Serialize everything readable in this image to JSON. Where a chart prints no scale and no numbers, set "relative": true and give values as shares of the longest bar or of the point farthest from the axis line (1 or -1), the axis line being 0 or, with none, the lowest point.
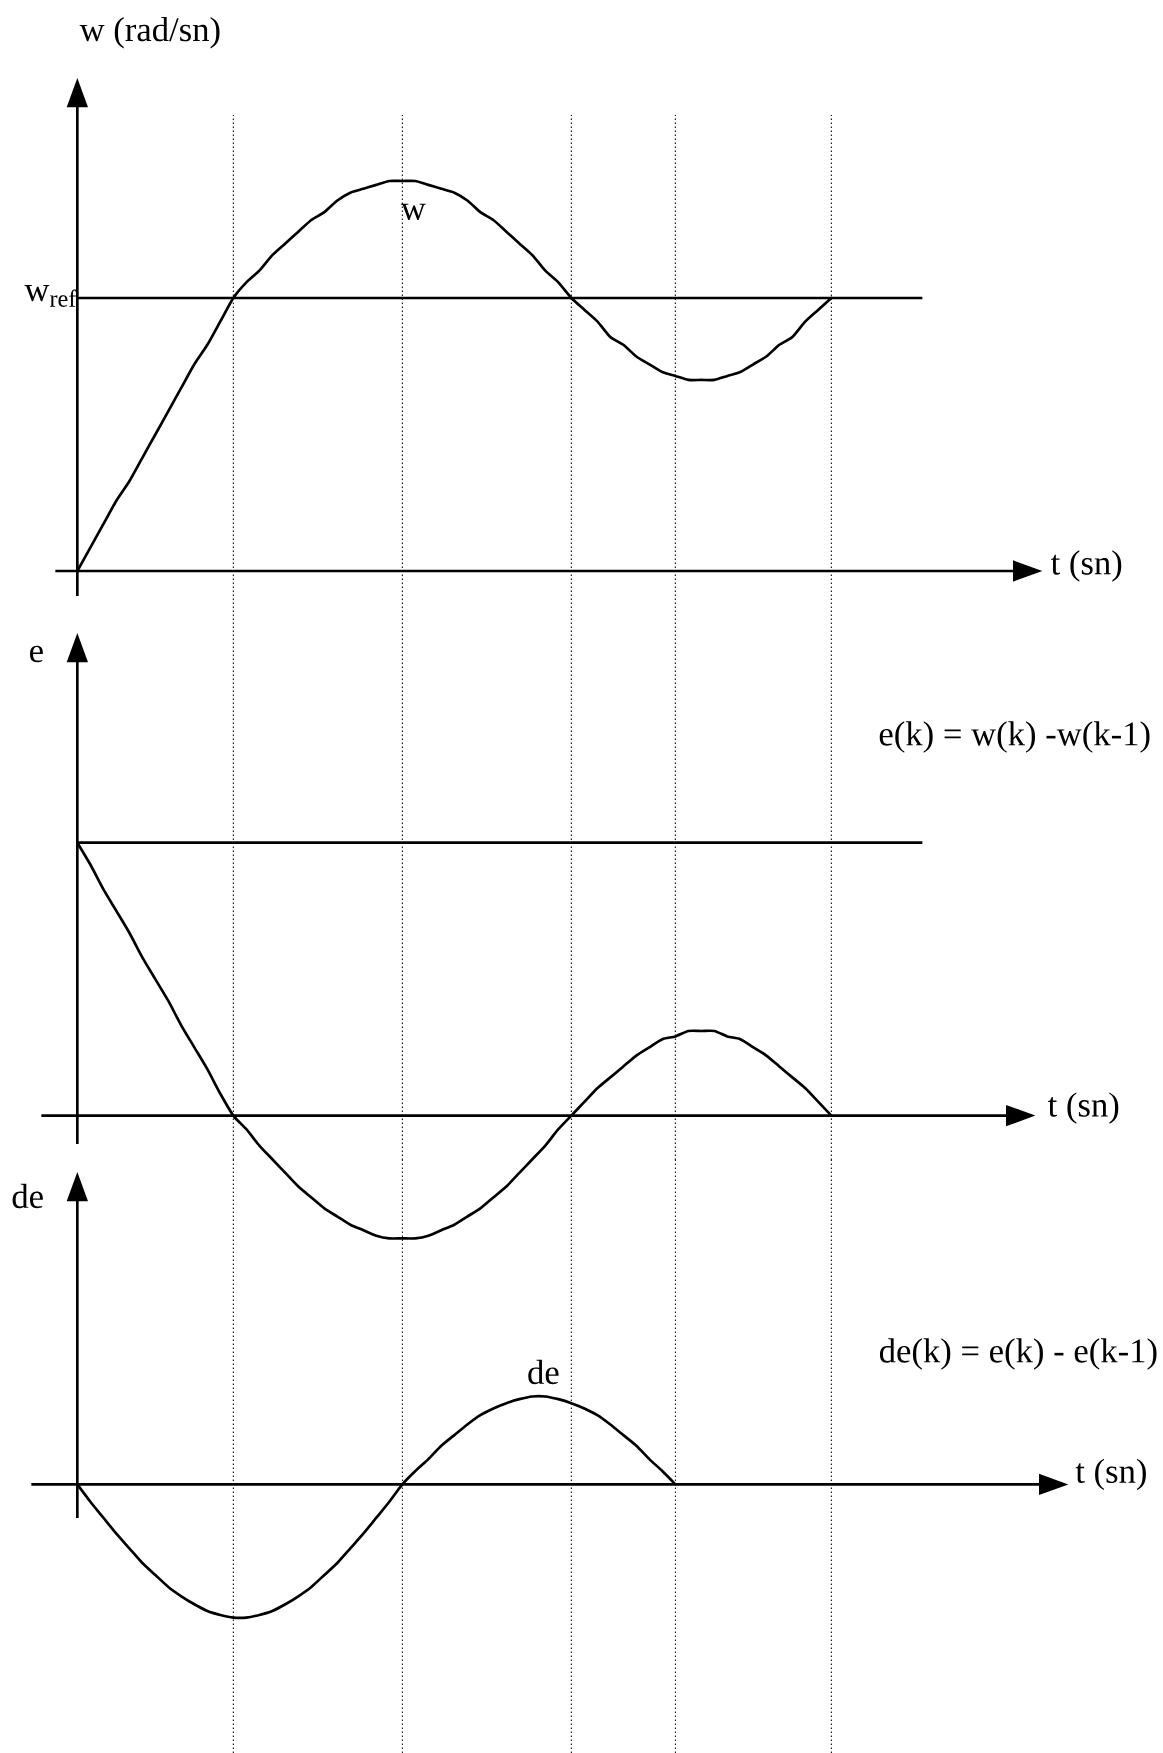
{
  "chart_data": [
    {
      "type": "line",
      "ylabel": "w (rad/sn)",
      "xlabel": "t (sn)",
      "relative": true,
      "grid": "x",
      "categories": [
        null,
        null,
        null,
        null,
        null,
        null,
        null,
        null,
        null,
        null,
        null,
        null,
        null,
        null,
        null,
        null,
        null,
        null,
        null,
        null,
        null,
        null,
        null,
        null,
        null,
        null,
        null,
        null,
        null,
        null,
        null,
        null,
        null,
        null,
        null,
        null,
        null,
        null,
        null,
        null,
        null,
        null,
        null,
        null,
        null,
        null,
        null,
        null,
        null,
        null,
        null,
        null,
        null,
        null,
        null,
        null,
        null,
        null,
        null,
        null,
        null,
        null,
        null,
        null,
        null,
        null
      ],
      "series": [
        {
          "name": "w",
          "color": "#000000",
          "values": [
            0,
            0.06,
            0.12,
            0.18,
            0.23,
            0.29,
            0.35,
            0.41,
            0.47,
            0.53,
            0.58,
            0.64,
            0.7,
            0.74,
            0.77,
            0.81,
            0.84,
            0.87,
            0.9,
            0.92,
            0.95,
            0.97,
            0.98,
            0.99,
            1,
            1,
            1,
            0.99,
            0.98,
            0.97,
            0.95,
            0.92,
            0.9,
            0.87,
            0.84,
            0.81,
            0.77,
            0.74,
            0.7,
            0.67,
            0.64,
            0.6,
            0.58,
            0.55,
            0.53,
            0.51,
            0.5,
            0.49,
            0.49,
            0.49,
            0.5,
            0.51,
            0.53,
            0.55,
            0.58,
            0.6,
            0.64,
            0.67,
            0.7,
            null,
            null,
            null,
            null,
            null,
            null,
            null
          ]
        }
      ],
      "ref_lines": [
        {
          "axis": "y",
          "value": 0.7,
          "label": "w$_{ref}$",
          "color": "#000000",
          "line_style": "solid"
        }
      ]
    },
    {
      "type": "line",
      "ylabel": "e",
      "xlabel": "t (sn)",
      "relative": true,
      "grid": "x",
      "categories": [
        null,
        null,
        null,
        null,
        null,
        null,
        null,
        null,
        null,
        null,
        null,
        null,
        null,
        null,
        null,
        null,
        null,
        null,
        null,
        null,
        null,
        null,
        null,
        null,
        null,
        null,
        null,
        null,
        null,
        null,
        null,
        null,
        null,
        null,
        null,
        null,
        null,
        null,
        null,
        null,
        null,
        null,
        null,
        null,
        null,
        null,
        null,
        null,
        null,
        null,
        null,
        null,
        null,
        null,
        null,
        null,
        null,
        null,
        null,
        null,
        null,
        null,
        null,
        null,
        null,
        null
      ],
      "series": [
        {
          "color": "#000000",
          "values": [
            1,
            0.92,
            0.83,
            0.75,
            0.67,
            0.58,
            0.5,
            0.42,
            0.33,
            0.25,
            0.17,
            0.08,
            0,
            -0.05,
            -0.11,
            -0.16,
            -0.21,
            -0.26,
            -0.3,
            -0.34,
            -0.37,
            -0.4,
            -0.42,
            -0.44,
            -0.45,
            -0.45,
            -0.45,
            -0.44,
            -0.42,
            -0.4,
            -0.37,
            -0.34,
            -0.3,
            -0.26,
            -0.21,
            -0.16,
            -0.11,
            -0.05,
            0,
            0.05,
            0.1,
            0.14,
            0.18,
            0.22,
            0.25,
            0.28,
            0.29,
            0.31,
            0.31,
            0.31,
            0.29,
            0.28,
            0.25,
            0.22,
            0.18,
            0.14,
            0.1,
            0.05,
            0,
            null,
            null,
            null,
            null,
            null,
            null,
            null
          ]
        }
      ],
      "ref_lines": [
        {
          "axis": "y",
          "value": 1,
          "color": "#000000",
          "line_style": "solid"
        }
      ],
      "annotations": [
        "e(k) = w(k) -w(k-1)"
      ]
    },
    {
      "type": "line",
      "ylabel": "de",
      "xlabel": "t (sn)",
      "relative": true,
      "grid": "x",
      "categories": [
        null,
        null,
        null,
        null,
        null,
        null,
        null,
        null,
        null,
        null,
        null,
        null,
        null,
        null,
        null,
        null,
        null,
        null,
        null,
        null,
        null,
        null,
        null,
        null,
        null,
        null,
        null,
        null,
        null,
        null,
        null,
        null,
        null,
        null,
        null,
        null,
        null,
        null,
        null,
        null,
        null,
        null,
        null,
        null,
        null,
        null,
        null,
        null,
        null,
        null,
        null,
        null,
        null,
        null,
        null,
        null,
        null,
        null,
        null,
        null,
        null,
        null,
        null,
        null,
        null,
        null
      ],
      "series": [
        {
          "name": "de",
          "color": "#000000",
          "values": [
            0,
            -0.13,
            -0.25,
            -0.37,
            -0.48,
            -0.59,
            -0.68,
            -0.77,
            -0.84,
            -0.9,
            -0.95,
            -0.98,
            -1,
            -1,
            -0.98,
            -0.95,
            -0.9,
            -0.84,
            -0.77,
            -0.68,
            -0.59,
            -0.48,
            -0.37,
            -0.25,
            -0.13,
            0,
            0.1,
            0.19,
            0.29,
            0.37,
            0.45,
            0.52,
            0.57,
            0.61,
            0.64,
            0.66,
            0.66,
            0.64,
            0.61,
            0.57,
            0.52,
            0.45,
            0.37,
            0.29,
            0.19,
            0.1,
            0,
            null,
            null,
            null,
            null,
            null,
            null,
            null,
            null,
            null,
            null,
            null,
            null,
            null,
            null,
            null,
            null,
            null,
            null,
            null
          ]
        }
      ],
      "annotations": [
        "de(k) = e(k) - e(k-1)"
      ]
    }
  ]
}
